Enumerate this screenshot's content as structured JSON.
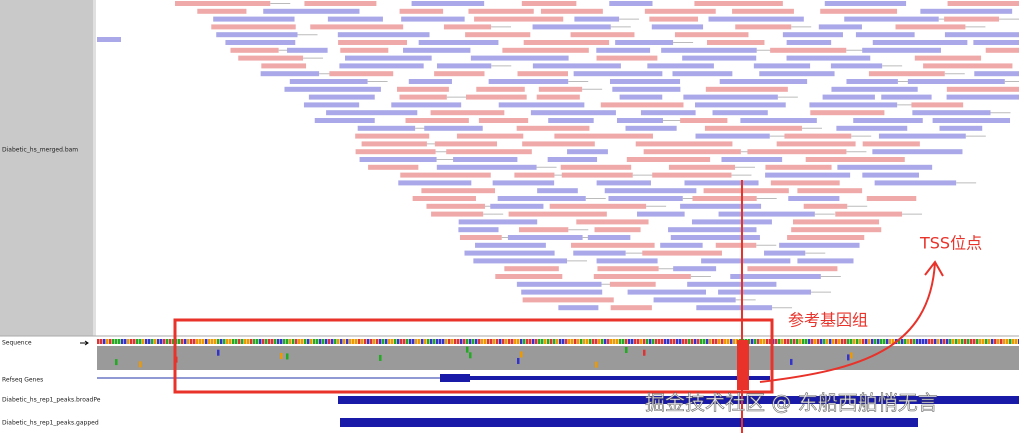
{
  "tracks": {
    "bam": "Diabetic_hs_merged.bam",
    "sequence": "Sequence",
    "genes": "Refseq Genes",
    "broad": "Diabetic_hs_rep1_peaks.broadPe",
    "gapped": "Diabetic_hs_rep1_peaks.gapped"
  },
  "annotations": {
    "tss": "TSS位点",
    "reference": "参考基因组"
  },
  "watermark": "掘金技术社区 @ 东船西舶悄无言"
}
